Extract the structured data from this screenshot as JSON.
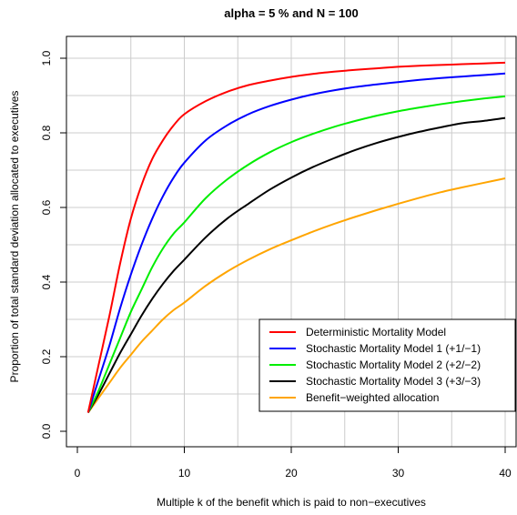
{
  "chart_data": {
    "type": "line",
    "title": "alpha = 5 % and N = 100",
    "xlabel": "Multiple k of the benefit which is paid to non−executives",
    "ylabel": "Proportion of total standard deviation allocated to executives",
    "xlim": [
      1,
      40
    ],
    "ylim": [
      0,
      1
    ],
    "xticks": [
      0,
      10,
      20,
      30,
      40
    ],
    "yticks": [
      0.0,
      0.2,
      0.4,
      0.6,
      0.8,
      1.0
    ],
    "ytick_labels": [
      "0.0",
      "0.2",
      "0.4",
      "0.6",
      "0.8",
      "1.0"
    ],
    "grid": true,
    "legend_position": "bottom-right",
    "x": [
      1,
      2,
      3,
      4,
      5,
      6,
      7,
      8,
      9,
      10,
      12,
      14,
      16,
      18,
      20,
      22,
      24,
      26,
      28,
      30,
      32,
      34,
      36,
      38,
      40
    ],
    "series": [
      {
        "name": "Deterministic Mortality Model",
        "color": "#ff0000",
        "values": [
          0.05,
          0.18,
          0.31,
          0.45,
          0.57,
          0.66,
          0.73,
          0.78,
          0.82,
          0.85,
          0.885,
          0.91,
          0.928,
          0.94,
          0.95,
          0.958,
          0.964,
          0.969,
          0.973,
          0.977,
          0.98,
          0.982,
          0.984,
          0.986,
          0.988
        ]
      },
      {
        "name": "Stochastic Mortality Model 1 (+1/−1)",
        "color": "#0000ff",
        "values": [
          0.05,
          0.14,
          0.23,
          0.33,
          0.42,
          0.5,
          0.57,
          0.63,
          0.68,
          0.72,
          0.78,
          0.82,
          0.85,
          0.872,
          0.889,
          0.903,
          0.914,
          0.923,
          0.93,
          0.936,
          0.942,
          0.947,
          0.951,
          0.955,
          0.959
        ]
      },
      {
        "name": "Stochastic Mortality Model 2 (+2/−2)",
        "color": "#00ee00",
        "values": [
          0.05,
          0.11,
          0.18,
          0.25,
          0.32,
          0.38,
          0.44,
          0.49,
          0.53,
          0.56,
          0.625,
          0.675,
          0.715,
          0.748,
          0.775,
          0.797,
          0.816,
          0.832,
          0.846,
          0.858,
          0.868,
          0.877,
          0.885,
          0.892,
          0.898
        ]
      },
      {
        "name": "Stochastic Mortality Model 3 (+3/−3)",
        "color": "#000000",
        "values": [
          0.05,
          0.1,
          0.155,
          0.21,
          0.26,
          0.31,
          0.355,
          0.395,
          0.43,
          0.46,
          0.52,
          0.57,
          0.61,
          0.648,
          0.68,
          0.708,
          0.732,
          0.754,
          0.773,
          0.789,
          0.803,
          0.815,
          0.826,
          0.832,
          0.84
        ]
      },
      {
        "name": "Benefit−weighted allocation",
        "color": "#ffa500",
        "values": [
          0.05,
          0.09,
          0.13,
          0.17,
          0.205,
          0.24,
          0.27,
          0.3,
          0.325,
          0.345,
          0.39,
          0.428,
          0.46,
          0.488,
          0.512,
          0.535,
          0.556,
          0.575,
          0.593,
          0.61,
          0.626,
          0.641,
          0.654,
          0.666,
          0.678
        ]
      }
    ]
  }
}
